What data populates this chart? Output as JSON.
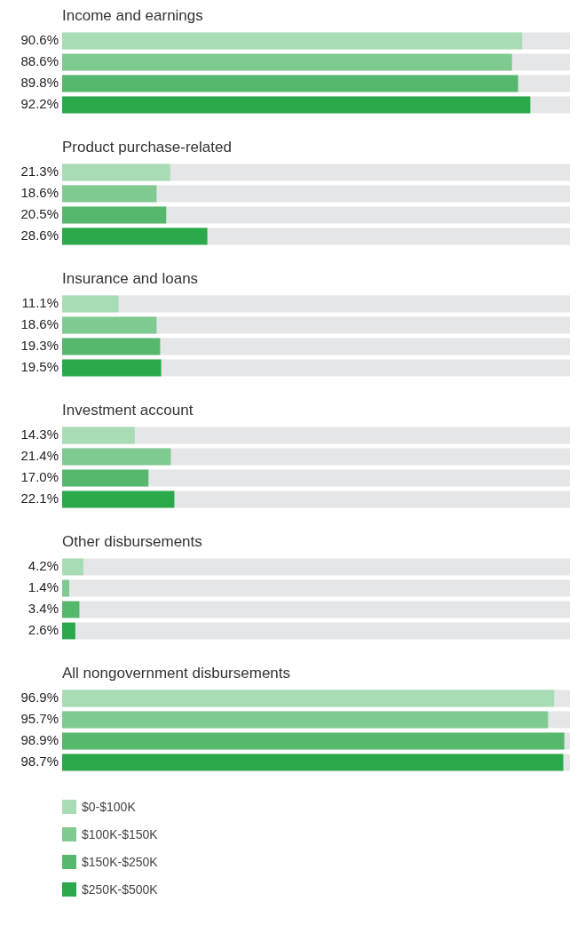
{
  "chart_data": [
    {
      "type": "bar",
      "orientation": "horizontal",
      "title": "Income and earnings",
      "categories": [
        null
      ],
      "xlim": [
        0,
        100
      ],
      "legend": false,
      "series": [
        {
          "color": "#a8dcb5",
          "values": [
            90.6
          ],
          "value_labels": [
            "90.6%"
          ]
        },
        {
          "color": "#7fca90",
          "values": [
            88.6
          ],
          "value_labels": [
            "88.6%"
          ]
        },
        {
          "color": "#55b86c",
          "values": [
            89.8
          ],
          "value_labels": [
            "89.8%"
          ]
        },
        {
          "color": "#2aa84a",
          "values": [
            92.2
          ],
          "value_labels": [
            "92.2%"
          ]
        }
      ]
    },
    {
      "type": "bar",
      "orientation": "horizontal",
      "title": "Product purchase-related",
      "categories": [
        null
      ],
      "xlim": [
        0,
        100
      ],
      "legend": false,
      "series": [
        {
          "color": "#a8dcb5",
          "values": [
            21.3
          ],
          "value_labels": [
            "21.3%"
          ]
        },
        {
          "color": "#7fca90",
          "values": [
            18.6
          ],
          "value_labels": [
            "18.6%"
          ]
        },
        {
          "color": "#55b86c",
          "values": [
            20.5
          ],
          "value_labels": [
            "20.5%"
          ]
        },
        {
          "color": "#2aa84a",
          "values": [
            28.6
          ],
          "value_labels": [
            "28.6%"
          ]
        }
      ]
    },
    {
      "type": "bar",
      "orientation": "horizontal",
      "title": "Insurance and loans",
      "categories": [
        null
      ],
      "xlim": [
        0,
        100
      ],
      "legend": false,
      "series": [
        {
          "color": "#a8dcb5",
          "values": [
            11.1
          ],
          "value_labels": [
            "11.1%"
          ]
        },
        {
          "color": "#7fca90",
          "values": [
            18.6
          ],
          "value_labels": [
            "18.6%"
          ]
        },
        {
          "color": "#55b86c",
          "values": [
            19.3
          ],
          "value_labels": [
            "19.3%"
          ]
        },
        {
          "color": "#2aa84a",
          "values": [
            19.5
          ],
          "value_labels": [
            "19.5%"
          ]
        }
      ]
    },
    {
      "type": "bar",
      "orientation": "horizontal",
      "title": "Investment account",
      "categories": [
        null
      ],
      "xlim": [
        0,
        100
      ],
      "legend": false,
      "series": [
        {
          "color": "#a8dcb5",
          "values": [
            14.3
          ],
          "value_labels": [
            "14.3%"
          ]
        },
        {
          "color": "#7fca90",
          "values": [
            21.4
          ],
          "value_labels": [
            "21.4%"
          ]
        },
        {
          "color": "#55b86c",
          "values": [
            17.0
          ],
          "value_labels": [
            "17.0%"
          ]
        },
        {
          "color": "#2aa84a",
          "values": [
            22.1
          ],
          "value_labels": [
            "22.1%"
          ]
        }
      ]
    },
    {
      "type": "bar",
      "orientation": "horizontal",
      "title": "Other disbursements",
      "categories": [
        null
      ],
      "xlim": [
        0,
        100
      ],
      "legend": false,
      "series": [
        {
          "color": "#a8dcb5",
          "values": [
            4.2
          ],
          "value_labels": [
            "4.2%"
          ]
        },
        {
          "color": "#7fca90",
          "values": [
            1.4
          ],
          "value_labels": [
            "1.4%"
          ]
        },
        {
          "color": "#55b86c",
          "values": [
            3.4
          ],
          "value_labels": [
            "3.4%"
          ]
        },
        {
          "color": "#2aa84a",
          "values": [
            2.6
          ],
          "value_labels": [
            "2.6%"
          ]
        }
      ]
    },
    {
      "type": "bar",
      "orientation": "horizontal",
      "title": "All nongovernment disbursements",
      "categories": [
        null
      ],
      "xlim": [
        0,
        100
      ],
      "legend": "bottom left",
      "series": [
        {
          "name": "$0-$100K",
          "color": "#a8dcb5",
          "values": [
            96.9
          ],
          "value_labels": [
            "96.9%"
          ]
        },
        {
          "name": "$100K-$150K",
          "color": "#7fca90",
          "values": [
            95.7
          ],
          "value_labels": [
            "95.7%"
          ]
        },
        {
          "name": "$150K-$250K",
          "color": "#55b86c",
          "values": [
            98.9
          ],
          "value_labels": [
            "98.9%"
          ]
        },
        {
          "name": "$250K-$500K",
          "color": "#2aa84a",
          "values": [
            98.7
          ],
          "value_labels": [
            "98.7%"
          ]
        }
      ]
    }
  ]
}
